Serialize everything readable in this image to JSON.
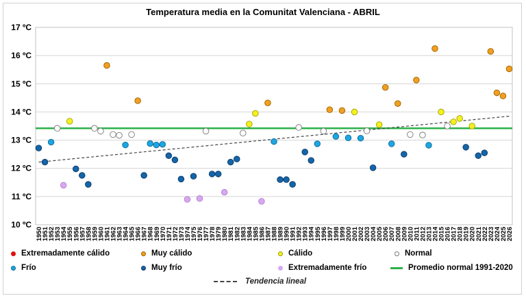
{
  "chart_data": {
    "type": "scatter",
    "title": "Temperatura media en la Comunitat Valenciana - ABRIL",
    "ylim": [
      10,
      17
    ],
    "y_ticks": [
      "10 ºC",
      "11 ºC",
      "12 ºC",
      "13 ºC",
      "14 ºC",
      "15 ºC",
      "16 ºC",
      "17 ºC"
    ],
    "x_ticks": [
      "1950",
      "1951",
      "1952",
      "1953",
      "1954",
      "1955",
      "1956",
      "1957",
      "1958",
      "1959",
      "1960",
      "1961",
      "1962",
      "1963",
      "1964",
      "1965",
      "1966",
      "1967",
      "1968",
      "1969",
      "1970",
      "1971",
      "1972",
      "1973",
      "1974",
      "1975",
      "1976",
      "1977",
      "1978",
      "1979",
      "1980",
      "1981",
      "1982",
      "1983",
      "1984",
      "1985",
      "1986",
      "1987",
      "1988",
      "1989",
      "1990",
      "1991",
      "1992",
      "1993",
      "1994",
      "1995",
      "1996",
      "1997",
      "1998",
      "1999",
      "2000",
      "2001",
      "2002",
      "2003",
      "2004",
      "2005",
      "2006",
      "2007",
      "2008",
      "2009",
      "2010",
      "2011",
      "2012",
      "2013",
      "2014",
      "2015",
      "2016",
      "2017",
      "2018",
      "2019",
      "2020",
      "2021",
      "2022",
      "2023",
      "2024",
      "2025",
      "2026"
    ],
    "categories": {
      "extremadamente_calido": {
        "label": "Extremadamente cálido",
        "color": "#e01010"
      },
      "muy_calido": {
        "label": "Muy cálido",
        "color": "#f0a020"
      },
      "calido": {
        "label": "Cálido",
        "color": "#f5f020"
      },
      "normal": {
        "label": "Normal",
        "color": "#ffffff"
      },
      "frio": {
        "label": "Frío",
        "color": "#1ea6e0"
      },
      "muy_frio": {
        "label": "Muy frío",
        "color": "#1565a8"
      },
      "extremadamente_frio": {
        "label": "Extremadamente frío",
        "color": "#d8a8f0"
      }
    },
    "normal_average": {
      "label": "Promedio normal 1991-2020",
      "value": 13.42,
      "color": "#2db04a"
    },
    "trend": {
      "label": "Tendencia lineal",
      "start": [
        1950,
        12.22
      ],
      "end": [
        2026,
        13.85
      ]
    },
    "points": [
      {
        "x": 1950,
        "y": 12.72,
        "cat": "muy_frio"
      },
      {
        "x": 1951,
        "y": 12.22,
        "cat": "muy_frio"
      },
      {
        "x": 1952,
        "y": 12.93,
        "cat": "frio"
      },
      {
        "x": 1953,
        "y": 13.42,
        "cat": "normal"
      },
      {
        "x": 1954,
        "y": 11.4,
        "cat": "extremadamente_frio"
      },
      {
        "x": 1955,
        "y": 13.67,
        "cat": "calido"
      },
      {
        "x": 1956,
        "y": 11.98,
        "cat": "muy_frio"
      },
      {
        "x": 1957,
        "y": 11.75,
        "cat": "muy_frio"
      },
      {
        "x": 1958,
        "y": 11.43,
        "cat": "muy_frio"
      },
      {
        "x": 1959,
        "y": 13.42,
        "cat": "normal"
      },
      {
        "x": 1960,
        "y": 13.32,
        "cat": "normal"
      },
      {
        "x": 1961,
        "y": 15.65,
        "cat": "muy_calido"
      },
      {
        "x": 1962,
        "y": 13.2,
        "cat": "normal"
      },
      {
        "x": 1963,
        "y": 13.17,
        "cat": "normal"
      },
      {
        "x": 1964,
        "y": 12.83,
        "cat": "frio"
      },
      {
        "x": 1965,
        "y": 13.2,
        "cat": "normal"
      },
      {
        "x": 1966,
        "y": 14.4,
        "cat": "muy_calido"
      },
      {
        "x": 1967,
        "y": 11.75,
        "cat": "muy_frio"
      },
      {
        "x": 1968,
        "y": 12.88,
        "cat": "frio"
      },
      {
        "x": 1969,
        "y": 12.83,
        "cat": "frio"
      },
      {
        "x": 1970,
        "y": 12.85,
        "cat": "frio"
      },
      {
        "x": 1971,
        "y": 12.45,
        "cat": "muy_frio"
      },
      {
        "x": 1972,
        "y": 12.3,
        "cat": "muy_frio"
      },
      {
        "x": 1973,
        "y": 11.62,
        "cat": "muy_frio"
      },
      {
        "x": 1974,
        "y": 10.9,
        "cat": "extremadamente_frio"
      },
      {
        "x": 1975,
        "y": 11.72,
        "cat": "muy_frio"
      },
      {
        "x": 1976,
        "y": 10.93,
        "cat": "extremadamente_frio"
      },
      {
        "x": 1977,
        "y": 13.32,
        "cat": "normal"
      },
      {
        "x": 1978,
        "y": 11.8,
        "cat": "muy_frio"
      },
      {
        "x": 1979,
        "y": 11.8,
        "cat": "muy_frio"
      },
      {
        "x": 1980,
        "y": 11.15,
        "cat": "extremadamente_frio"
      },
      {
        "x": 1981,
        "y": 12.22,
        "cat": "muy_frio"
      },
      {
        "x": 1982,
        "y": 12.33,
        "cat": "muy_frio"
      },
      {
        "x": 1983,
        "y": 13.25,
        "cat": "normal"
      },
      {
        "x": 1984,
        "y": 13.57,
        "cat": "calido"
      },
      {
        "x": 1985,
        "y": 13.95,
        "cat": "calido"
      },
      {
        "x": 1986,
        "y": 10.83,
        "cat": "extremadamente_frio"
      },
      {
        "x": 1987,
        "y": 14.32,
        "cat": "muy_calido"
      },
      {
        "x": 1988,
        "y": 12.95,
        "cat": "frio"
      },
      {
        "x": 1989,
        "y": 11.6,
        "cat": "muy_frio"
      },
      {
        "x": 1990,
        "y": 11.6,
        "cat": "muy_frio"
      },
      {
        "x": 1991,
        "y": 11.43,
        "cat": "muy_frio"
      },
      {
        "x": 1992,
        "y": 13.45,
        "cat": "normal"
      },
      {
        "x": 1993,
        "y": 12.58,
        "cat": "muy_frio"
      },
      {
        "x": 1994,
        "y": 12.28,
        "cat": "muy_frio"
      },
      {
        "x": 1995,
        "y": 12.87,
        "cat": "frio"
      },
      {
        "x": 1996,
        "y": 13.32,
        "cat": "normal"
      },
      {
        "x": 1997,
        "y": 14.08,
        "cat": "muy_calido"
      },
      {
        "x": 1998,
        "y": 13.13,
        "cat": "frio"
      },
      {
        "x": 1999,
        "y": 14.05,
        "cat": "muy_calido"
      },
      {
        "x": 2000,
        "y": 13.08,
        "cat": "frio"
      },
      {
        "x": 2001,
        "y": 14.0,
        "cat": "calido"
      },
      {
        "x": 2002,
        "y": 13.07,
        "cat": "frio"
      },
      {
        "x": 2003,
        "y": 13.33,
        "cat": "normal"
      },
      {
        "x": 2004,
        "y": 12.02,
        "cat": "muy_frio"
      },
      {
        "x": 2005,
        "y": 13.55,
        "cat": "calido"
      },
      {
        "x": 2006,
        "y": 14.87,
        "cat": "muy_calido"
      },
      {
        "x": 2007,
        "y": 12.87,
        "cat": "frio"
      },
      {
        "x": 2008,
        "y": 14.3,
        "cat": "muy_calido"
      },
      {
        "x": 2009,
        "y": 12.5,
        "cat": "muy_frio"
      },
      {
        "x": 2010,
        "y": 13.2,
        "cat": "normal"
      },
      {
        "x": 2011,
        "y": 15.13,
        "cat": "muy_calido"
      },
      {
        "x": 2012,
        "y": 13.18,
        "cat": "normal"
      },
      {
        "x": 2013,
        "y": 12.82,
        "cat": "frio"
      },
      {
        "x": 2014,
        "y": 16.25,
        "cat": "muy_calido"
      },
      {
        "x": 2015,
        "y": 14.0,
        "cat": "calido"
      },
      {
        "x": 2016,
        "y": 13.5,
        "cat": "normal"
      },
      {
        "x": 2017,
        "y": 13.65,
        "cat": "calido"
      },
      {
        "x": 2018,
        "y": 13.77,
        "cat": "calido"
      },
      {
        "x": 2019,
        "y": 12.75,
        "cat": "muy_frio"
      },
      {
        "x": 2020,
        "y": 13.5,
        "cat": "calido"
      },
      {
        "x": 2021,
        "y": 12.45,
        "cat": "muy_frio"
      },
      {
        "x": 2022,
        "y": 12.55,
        "cat": "muy_frio"
      },
      {
        "x": 2023,
        "y": 16.15,
        "cat": "muy_calido"
      },
      {
        "x": 2024,
        "y": 14.68,
        "cat": "muy_calido"
      },
      {
        "x": 2025,
        "y": 14.57,
        "cat": "muy_calido"
      },
      {
        "x": 2026,
        "y": 15.53,
        "cat": "muy_calido"
      }
    ],
    "grid": true,
    "legend_position": "bottom"
  }
}
